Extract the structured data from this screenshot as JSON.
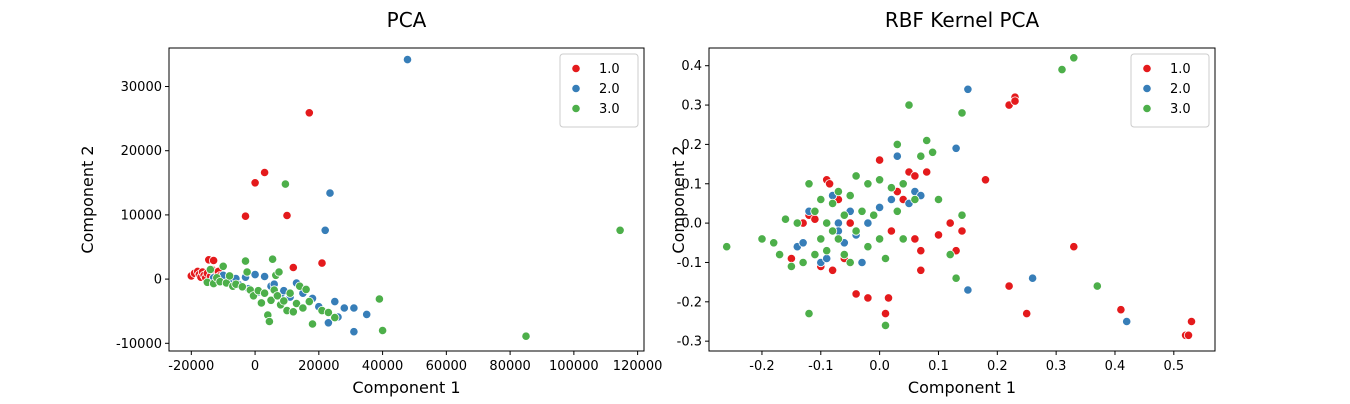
{
  "chart_data": [
    {
      "type": "scatter",
      "title": "PCA",
      "xlabel": "Component 1",
      "ylabel": "Component 2",
      "xlim": [
        -27000,
        122000
      ],
      "ylim": [
        -11200,
        36000
      ],
      "xticks": [
        -20000,
        0,
        20000,
        40000,
        60000,
        80000,
        100000,
        120000
      ],
      "yticks": [
        -10000,
        0,
        10000,
        20000,
        30000
      ],
      "legend": "upper right",
      "grid": false,
      "series": [
        {
          "name": "1.0",
          "color": "#e41a1c",
          "points": [
            [
              -20000,
              500
            ],
            [
              -19000,
              900
            ],
            [
              -18000,
              1200
            ],
            [
              -17500,
              700
            ],
            [
              -17000,
              300
            ],
            [
              -16500,
              1100
            ],
            [
              -16000,
              600
            ],
            [
              -15500,
              200
            ],
            [
              -15000,
              900
            ],
            [
              -14500,
              3000
            ],
            [
              -14000,
              400
            ],
            [
              -13500,
              1500
            ],
            [
              -13000,
              2900
            ],
            [
              -12500,
              800
            ],
            [
              -12000,
              100
            ],
            [
              -11500,
              1200
            ],
            [
              -11000,
              500
            ],
            [
              -10500,
              -200
            ],
            [
              -3000,
              9800
            ],
            [
              0,
              15000
            ],
            [
              3000,
              16600
            ],
            [
              10000,
              9900
            ],
            [
              12000,
              1800
            ],
            [
              17000,
              25900
            ],
            [
              21000,
              2500
            ]
          ]
        },
        {
          "name": "2.0",
          "color": "#377eb8",
          "points": [
            [
              -13000,
              200
            ],
            [
              -10000,
              600
            ],
            [
              -8000,
              -300
            ],
            [
              -6000,
              100
            ],
            [
              -5000,
              -900
            ],
            [
              -3000,
              300
            ],
            [
              -2000,
              -1500
            ],
            [
              0,
              700
            ],
            [
              1000,
              -2000
            ],
            [
              3000,
              400
            ],
            [
              5000,
              -1100
            ],
            [
              6000,
              -800
            ],
            [
              8000,
              -2500
            ],
            [
              9000,
              -1800
            ],
            [
              11000,
              -2800
            ],
            [
              13000,
              -600
            ],
            [
              15000,
              -2200
            ],
            [
              16000,
              -1500
            ],
            [
              18000,
              -3000
            ],
            [
              20000,
              -4300
            ],
            [
              22000,
              7600
            ],
            [
              23000,
              -6800
            ],
            [
              23500,
              13400
            ],
            [
              25000,
              -3500
            ],
            [
              26000,
              -5900
            ],
            [
              28000,
              -4500
            ],
            [
              31000,
              -8200
            ],
            [
              31000,
              -4500
            ],
            [
              35000,
              -5500
            ],
            [
              47800,
              34200
            ]
          ]
        },
        {
          "name": "3.0",
          "color": "#4daf4a",
          "points": [
            [
              -15000,
              -500
            ],
            [
              -14000,
              1500
            ],
            [
              -13000,
              -700
            ],
            [
              -12000,
              200
            ],
            [
              -11000,
              -400
            ],
            [
              -10000,
              2000
            ],
            [
              -9000,
              -600
            ],
            [
              -8000,
              500
            ],
            [
              -7000,
              -1100
            ],
            [
              -6000,
              -800
            ],
            [
              -4000,
              -1200
            ],
            [
              -3000,
              2800
            ],
            [
              -2500,
              1100
            ],
            [
              -1500,
              -1700
            ],
            [
              -500,
              -2600
            ],
            [
              1000,
              -1800
            ],
            [
              2000,
              -3700
            ],
            [
              3000,
              -2200
            ],
            [
              4000,
              -5600
            ],
            [
              4500,
              -6600
            ],
            [
              5000,
              -3300
            ],
            [
              5500,
              3100
            ],
            [
              6000,
              -1700
            ],
            [
              6500,
              600
            ],
            [
              7000,
              -2600
            ],
            [
              7500,
              1100
            ],
            [
              8000,
              -4000
            ],
            [
              9000,
              -3400
            ],
            [
              9500,
              14800
            ],
            [
              10000,
              -4900
            ],
            [
              11000,
              -2200
            ],
            [
              12000,
              -5100
            ],
            [
              13000,
              -3800
            ],
            [
              14000,
              -1100
            ],
            [
              15000,
              -4500
            ],
            [
              16000,
              -1600
            ],
            [
              17000,
              -3500
            ],
            [
              18000,
              -7000
            ],
            [
              21000,
              -4900
            ],
            [
              23000,
              -5200
            ],
            [
              25000,
              -6000
            ],
            [
              39000,
              -3100
            ],
            [
              40000,
              -8000
            ],
            [
              85000,
              -8900
            ],
            [
              114500,
              7600
            ]
          ]
        }
      ]
    },
    {
      "type": "scatter",
      "title": "RBF Kernel PCA",
      "xlabel": "Component 1",
      "ylabel": "Component 2",
      "xlim": [
        -0.29,
        0.57
      ],
      "ylim": [
        -0.325,
        0.445
      ],
      "xticks": [
        -0.2,
        -0.1,
        0.0,
        0.1,
        0.2,
        0.3,
        0.4,
        0.5
      ],
      "yticks": [
        -0.3,
        -0.2,
        -0.1,
        0.0,
        0.1,
        0.2,
        0.3,
        0.4
      ],
      "legend": "upper right",
      "grid": false,
      "series": [
        {
          "name": "1.0",
          "color": "#e41a1c",
          "points": [
            [
              -0.15,
              -0.09
            ],
            [
              -0.13,
              0.0
            ],
            [
              -0.12,
              0.02
            ],
            [
              -0.11,
              0.01
            ],
            [
              -0.1,
              -0.11
            ],
            [
              -0.09,
              0.11
            ],
            [
              -0.085,
              0.1
            ],
            [
              -0.08,
              -0.12
            ],
            [
              -0.07,
              0.06
            ],
            [
              -0.06,
              -0.09
            ],
            [
              -0.05,
              0.0
            ],
            [
              -0.04,
              -0.18
            ],
            [
              -0.02,
              -0.19
            ],
            [
              0.0,
              0.16
            ],
            [
              0.01,
              -0.23
            ],
            [
              0.015,
              -0.19
            ],
            [
              0.02,
              -0.02
            ],
            [
              0.03,
              0.08
            ],
            [
              0.04,
              0.06
            ],
            [
              0.05,
              0.13
            ],
            [
              0.06,
              0.12
            ],
            [
              0.06,
              -0.04
            ],
            [
              0.07,
              -0.12
            ],
            [
              0.07,
              -0.07
            ],
            [
              0.08,
              0.13
            ],
            [
              0.1,
              -0.03
            ],
            [
              0.12,
              0.0
            ],
            [
              0.13,
              -0.07
            ],
            [
              0.14,
              -0.02
            ],
            [
              0.18,
              0.11
            ],
            [
              0.22,
              0.3
            ],
            [
              0.23,
              0.32
            ],
            [
              0.23,
              0.31
            ],
            [
              0.22,
              -0.16
            ],
            [
              0.25,
              -0.23
            ],
            [
              0.33,
              -0.06
            ],
            [
              0.41,
              -0.22
            ],
            [
              0.52,
              -0.285
            ],
            [
              0.525,
              -0.285
            ],
            [
              0.53,
              -0.25
            ]
          ]
        },
        {
          "name": "2.0",
          "color": "#377eb8",
          "points": [
            [
              -0.14,
              -0.06
            ],
            [
              -0.13,
              -0.05
            ],
            [
              -0.12,
              0.03
            ],
            [
              -0.1,
              -0.04
            ],
            [
              -0.1,
              -0.1
            ],
            [
              -0.09,
              -0.09
            ],
            [
              -0.08,
              0.07
            ],
            [
              -0.07,
              0.0
            ],
            [
              -0.07,
              -0.02
            ],
            [
              -0.06,
              -0.05
            ],
            [
              -0.05,
              0.03
            ],
            [
              -0.04,
              -0.03
            ],
            [
              -0.03,
              -0.1
            ],
            [
              -0.02,
              0.0
            ],
            [
              0.0,
              0.04
            ],
            [
              0.02,
              0.06
            ],
            [
              0.03,
              0.17
            ],
            [
              0.05,
              0.05
            ],
            [
              0.06,
              0.08
            ],
            [
              0.07,
              0.07
            ],
            [
              0.13,
              0.19
            ],
            [
              0.15,
              0.34
            ],
            [
              0.15,
              -0.17
            ],
            [
              0.26,
              -0.14
            ],
            [
              0.42,
              -0.25
            ]
          ]
        },
        {
          "name": "3.0",
          "color": "#4daf4a",
          "points": [
            [
              -0.26,
              -0.06
            ],
            [
              -0.2,
              -0.04
            ],
            [
              -0.18,
              -0.05
            ],
            [
              -0.17,
              -0.08
            ],
            [
              -0.16,
              0.01
            ],
            [
              -0.15,
              -0.11
            ],
            [
              -0.14,
              0.0
            ],
            [
              -0.13,
              -0.1
            ],
            [
              -0.12,
              0.1
            ],
            [
              -0.12,
              -0.23
            ],
            [
              -0.11,
              0.03
            ],
            [
              -0.11,
              -0.08
            ],
            [
              -0.1,
              0.06
            ],
            [
              -0.1,
              -0.04
            ],
            [
              -0.09,
              0.0
            ],
            [
              -0.09,
              -0.07
            ],
            [
              -0.08,
              0.05
            ],
            [
              -0.08,
              -0.02
            ],
            [
              -0.07,
              0.08
            ],
            [
              -0.07,
              -0.04
            ],
            [
              -0.06,
              0.02
            ],
            [
              -0.06,
              -0.08
            ],
            [
              -0.05,
              0.07
            ],
            [
              -0.05,
              -0.1
            ],
            [
              -0.04,
              0.12
            ],
            [
              -0.04,
              -0.02
            ],
            [
              -0.03,
              0.03
            ],
            [
              -0.02,
              0.1
            ],
            [
              -0.02,
              -0.06
            ],
            [
              -0.01,
              0.02
            ],
            [
              0.0,
              0.11
            ],
            [
              0.0,
              -0.04
            ],
            [
              0.01,
              -0.09
            ],
            [
              0.01,
              -0.26
            ],
            [
              0.02,
              0.09
            ],
            [
              0.03,
              0.2
            ],
            [
              0.03,
              0.03
            ],
            [
              0.04,
              0.1
            ],
            [
              0.04,
              -0.04
            ],
            [
              0.05,
              0.3
            ],
            [
              0.06,
              0.06
            ],
            [
              0.07,
              0.17
            ],
            [
              0.08,
              0.21
            ],
            [
              0.09,
              0.18
            ],
            [
              0.1,
              0.06
            ],
            [
              0.12,
              -0.08
            ],
            [
              0.13,
              -0.14
            ],
            [
              0.14,
              0.02
            ],
            [
              0.14,
              0.28
            ],
            [
              0.31,
              0.39
            ],
            [
              0.33,
              0.42
            ],
            [
              0.37,
              -0.16
            ]
          ]
        }
      ]
    }
  ]
}
